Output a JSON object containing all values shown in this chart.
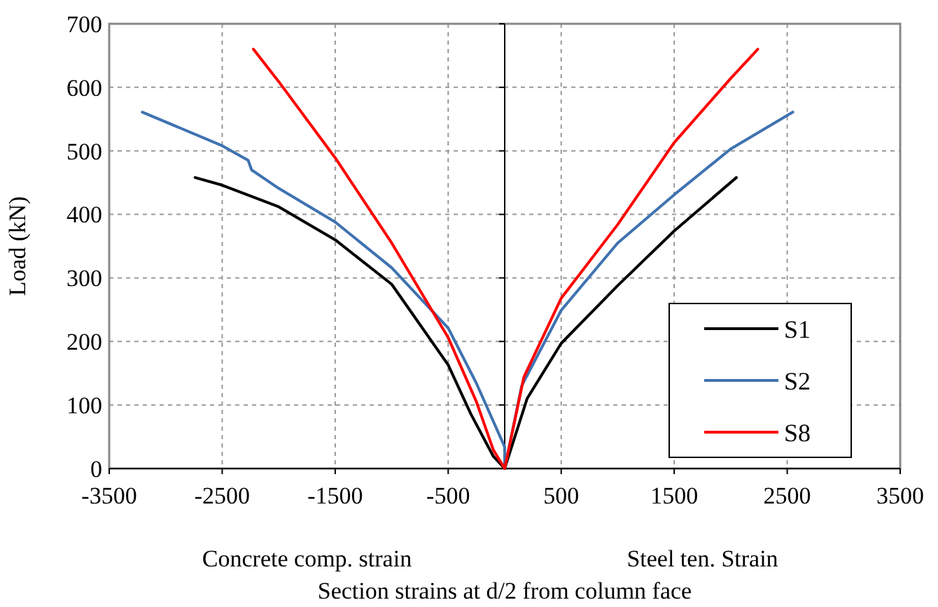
{
  "chart_data": {
    "type": "line",
    "xlabel": "Section strains at d/2 from column face",
    "ylabel": "Load (kN)",
    "annotations": [
      "Concrete comp. strain",
      "Steel ten. Strain"
    ],
    "xlim": [
      -3500,
      3500
    ],
    "xticks": [
      -3500,
      -2500,
      -1500,
      -500,
      500,
      1500,
      2500,
      3500
    ],
    "ylim": [
      0,
      700
    ],
    "yticks": [
      0,
      100,
      200,
      300,
      400,
      500,
      600,
      700
    ],
    "grid": true,
    "legend": "bottom right",
    "marker": "none",
    "line_style": "solid",
    "series": [
      {
        "name": "S1",
        "color": "#000000",
        "x": [
          -2740,
          -2500,
          -2000,
          -1500,
          -1000,
          -500,
          -300,
          -100,
          0,
          198,
          500,
          1000,
          1500,
          2050
        ],
        "values": [
          458,
          446,
          412,
          360,
          290,
          163,
          86,
          19,
          0,
          110,
          197,
          288,
          374,
          458
        ]
      },
      {
        "name": "S2",
        "color": "#3f72b0",
        "x": [
          -3207,
          -2500,
          -2270,
          -2240,
          -2000,
          -1500,
          -1000,
          -500,
          -250,
          0,
          0,
          150,
          500,
          1000,
          1500,
          2000,
          2550
        ],
        "values": [
          561,
          508,
          485,
          470,
          441,
          388,
          316,
          221,
          134,
          34,
          0,
          130,
          249,
          355,
          431,
          503,
          561
        ]
      },
      {
        "name": "S8",
        "color": "#ff0000",
        "x": [
          -2224,
          -2000,
          -1500,
          -1000,
          -500,
          -250,
          -100,
          0,
          170,
          500,
          1000,
          1500,
          2000,
          2240
        ],
        "values": [
          660,
          609,
          489,
          355,
          206,
          105,
          29,
          0,
          144,
          268,
          384,
          513,
          614,
          660
        ]
      }
    ]
  }
}
